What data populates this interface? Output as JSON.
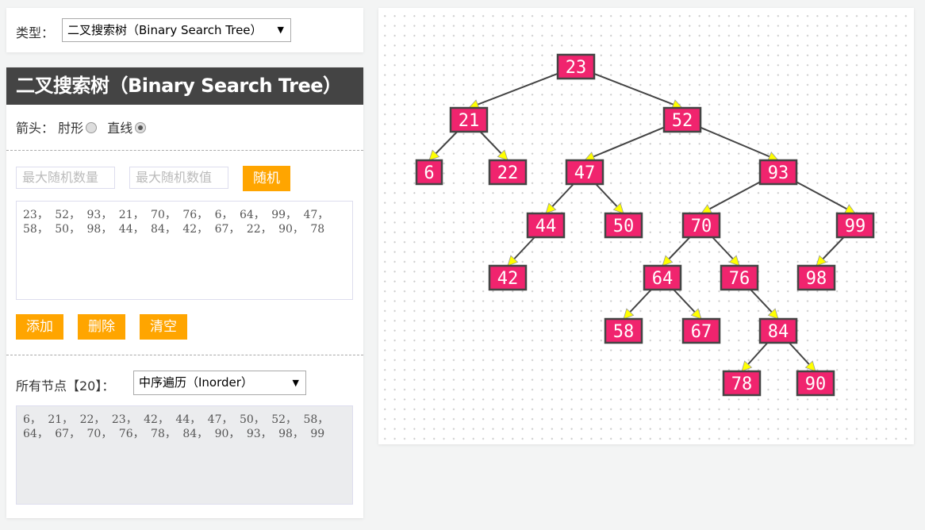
{
  "type_selector": {
    "label": "类型：",
    "value": "二叉搜索树（Binary Search Tree）"
  },
  "title": "二叉搜索树（Binary Search Tree）",
  "arrow": {
    "label": "箭头：",
    "options": [
      {
        "label": "肘形",
        "checked": false
      },
      {
        "label": "直线",
        "checked": true
      }
    ]
  },
  "random": {
    "max_count_placeholder": "最大随机数量",
    "max_value_placeholder": "最大随机数值",
    "button": "随机"
  },
  "input_values": "23，  52，  93，  21，  70，  76，  6，  64，  99，  47，  58，  50，  98，  44，  84，  42，  67，  22，  90，  78",
  "buttons": {
    "add": "添加",
    "delete": "删除",
    "clear": "清空"
  },
  "nodes_label": "所有节点【20】：",
  "traversal": {
    "value": "中序遍历（Inorder）"
  },
  "traversal_output": "6，  21，  22，  23，  42，  44，  47，  50，  52，  58，  64，  67，  70，  76，  78，  84，  90，  93，  98，  99",
  "colors": {
    "node_fill": "#f0246e",
    "node_border": "#444444",
    "arrowhead": "#ffff00",
    "button": "#ffa500"
  },
  "tree": {
    "root": 23,
    "edges": [
      [
        23,
        21
      ],
      [
        23,
        52
      ],
      [
        21,
        6
      ],
      [
        21,
        22
      ],
      [
        52,
        47
      ],
      [
        52,
        93
      ],
      [
        47,
        44
      ],
      [
        47,
        50
      ],
      [
        44,
        42
      ],
      [
        93,
        70
      ],
      [
        93,
        99
      ],
      [
        70,
        64
      ],
      [
        70,
        76
      ],
      [
        64,
        58
      ],
      [
        64,
        67
      ],
      [
        76,
        84
      ],
      [
        84,
        78
      ],
      [
        84,
        90
      ],
      [
        99,
        98
      ]
    ]
  }
}
